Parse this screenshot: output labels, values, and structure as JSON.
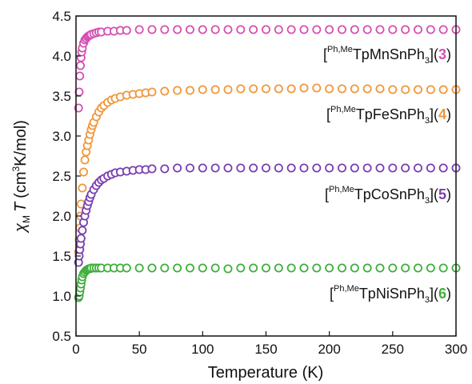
{
  "chart_data": {
    "type": "scatter",
    "xlabel": "Temperature (K)",
    "ylabel": {
      "chi": "χ",
      "chi_sub": "M",
      "T": "T",
      "unit_open": "(cm",
      "unit_sup": "3",
      "unit_close": "K/mol)"
    },
    "xlim": [
      0,
      300
    ],
    "ylim": [
      0.5,
      4.5
    ],
    "xticks": [
      "0",
      "50",
      "100",
      "150",
      "200",
      "250",
      "300"
    ],
    "yticks": [
      "0.5",
      "1.0",
      "1.5",
      "2.0",
      "2.5",
      "3.0",
      "3.5",
      "4.0",
      "4.5"
    ],
    "grid": false,
    "marker": "open-circle",
    "series": [
      {
        "id": "mn",
        "color": "#d54fb3",
        "label": {
          "open": "[",
          "sup": "Ph,Me",
          "main": "TpMnSnPh",
          "sub": "3",
          "close1": "](",
          "num": "3",
          "close2": ")"
        },
        "x": [
          2,
          2.5,
          3,
          3.5,
          4,
          4.5,
          5,
          6,
          7,
          8,
          9,
          10,
          11,
          12,
          14,
          16,
          18,
          20,
          25,
          30,
          35,
          40,
          50,
          60,
          70,
          80,
          90,
          100,
          110,
          120,
          130,
          140,
          150,
          160,
          170,
          180,
          190,
          200,
          210,
          220,
          230,
          240,
          250,
          260,
          270,
          280,
          290,
          300
        ],
        "y": [
          3.35,
          3.55,
          3.75,
          3.88,
          3.98,
          4.05,
          4.1,
          4.16,
          4.2,
          4.22,
          4.24,
          4.25,
          4.26,
          4.27,
          4.28,
          4.29,
          4.3,
          4.3,
          4.31,
          4.31,
          4.32,
          4.32,
          4.33,
          4.33,
          4.33,
          4.33,
          4.33,
          4.33,
          4.33,
          4.33,
          4.33,
          4.33,
          4.33,
          4.33,
          4.33,
          4.33,
          4.33,
          4.33,
          4.33,
          4.33,
          4.33,
          4.33,
          4.33,
          4.33,
          4.33,
          4.33,
          4.33,
          4.33
        ]
      },
      {
        "id": "fe",
        "color": "#f0973a",
        "label": {
          "open": "[",
          "sup": "Ph,Me",
          "main": "TpFeSnPh",
          "sub": "3",
          "close1": "](",
          "num": "4",
          "close2": ")"
        },
        "x": [
          2,
          2.5,
          3,
          3.5,
          4,
          5,
          6,
          7,
          8,
          9,
          10,
          11,
          12,
          13,
          14,
          16,
          18,
          20,
          22,
          25,
          28,
          31,
          35,
          40,
          45,
          50,
          55,
          60,
          70,
          80,
          90,
          100,
          110,
          120,
          130,
          140,
          150,
          160,
          170,
          180,
          190,
          200,
          210,
          220,
          230,
          240,
          250,
          260,
          270,
          280,
          290,
          300
        ],
        "y": [
          1.55,
          1.7,
          1.85,
          2.0,
          2.15,
          2.35,
          2.55,
          2.7,
          2.8,
          2.88,
          2.95,
          3.02,
          3.08,
          3.13,
          3.17,
          3.24,
          3.3,
          3.35,
          3.38,
          3.42,
          3.45,
          3.47,
          3.49,
          3.51,
          3.52,
          3.53,
          3.54,
          3.55,
          3.56,
          3.57,
          3.57,
          3.58,
          3.58,
          3.58,
          3.59,
          3.59,
          3.59,
          3.59,
          3.59,
          3.6,
          3.6,
          3.59,
          3.59,
          3.59,
          3.59,
          3.59,
          3.58,
          3.58,
          3.58,
          3.58,
          3.58,
          3.58
        ]
      },
      {
        "id": "co",
        "color": "#7a3eb0",
        "label": {
          "open": "[",
          "sup": "Ph,Me",
          "main": "TpCoSnPh",
          "sub": "3",
          "close1": "](",
          "num": "5",
          "close2": ")"
        },
        "x": [
          2,
          2.5,
          3,
          3.5,
          4,
          5,
          6,
          7,
          8,
          9,
          10,
          11,
          12,
          14,
          16,
          18,
          20,
          22,
          25,
          28,
          31,
          35,
          40,
          45,
          50,
          55,
          60,
          70,
          80,
          90,
          100,
          110,
          120,
          130,
          140,
          150,
          160,
          170,
          180,
          190,
          200,
          210,
          220,
          230,
          240,
          250,
          260,
          270,
          280,
          290,
          300
        ],
        "y": [
          1.42,
          1.5,
          1.58,
          1.65,
          1.72,
          1.82,
          1.92,
          2.0,
          2.07,
          2.13,
          2.18,
          2.23,
          2.27,
          2.33,
          2.38,
          2.42,
          2.45,
          2.47,
          2.5,
          2.52,
          2.54,
          2.55,
          2.56,
          2.57,
          2.58,
          2.58,
          2.59,
          2.59,
          2.6,
          2.6,
          2.6,
          2.6,
          2.6,
          2.6,
          2.6,
          2.6,
          2.6,
          2.6,
          2.6,
          2.6,
          2.6,
          2.6,
          2.6,
          2.6,
          2.6,
          2.6,
          2.6,
          2.6,
          2.6,
          2.6,
          2.6
        ]
      },
      {
        "id": "ni",
        "color": "#3fae3c",
        "label": {
          "open": "[",
          "sup": "Ph,Me",
          "main": "TpNiSnPh",
          "sub": "3",
          "close1": "](",
          "num": "6",
          "close2": ")"
        },
        "x": [
          2,
          2.5,
          3,
          3.5,
          4,
          4.5,
          5,
          6,
          7,
          8,
          9,
          10,
          11,
          12,
          14,
          16,
          18,
          20,
          25,
          30,
          35,
          40,
          50,
          60,
          70,
          80,
          90,
          100,
          110,
          120,
          130,
          140,
          150,
          160,
          170,
          180,
          190,
          200,
          210,
          220,
          230,
          240,
          250,
          260,
          270,
          280,
          290,
          300
        ],
        "y": [
          0.98,
          1.0,
          1.05,
          1.1,
          1.15,
          1.2,
          1.24,
          1.28,
          1.3,
          1.32,
          1.33,
          1.34,
          1.34,
          1.35,
          1.35,
          1.35,
          1.35,
          1.35,
          1.35,
          1.35,
          1.35,
          1.35,
          1.35,
          1.35,
          1.35,
          1.35,
          1.35,
          1.35,
          1.35,
          1.34,
          1.35,
          1.35,
          1.35,
          1.35,
          1.35,
          1.35,
          1.35,
          1.35,
          1.35,
          1.35,
          1.35,
          1.35,
          1.35,
          1.35,
          1.35,
          1.35,
          1.35,
          1.35
        ]
      }
    ]
  }
}
